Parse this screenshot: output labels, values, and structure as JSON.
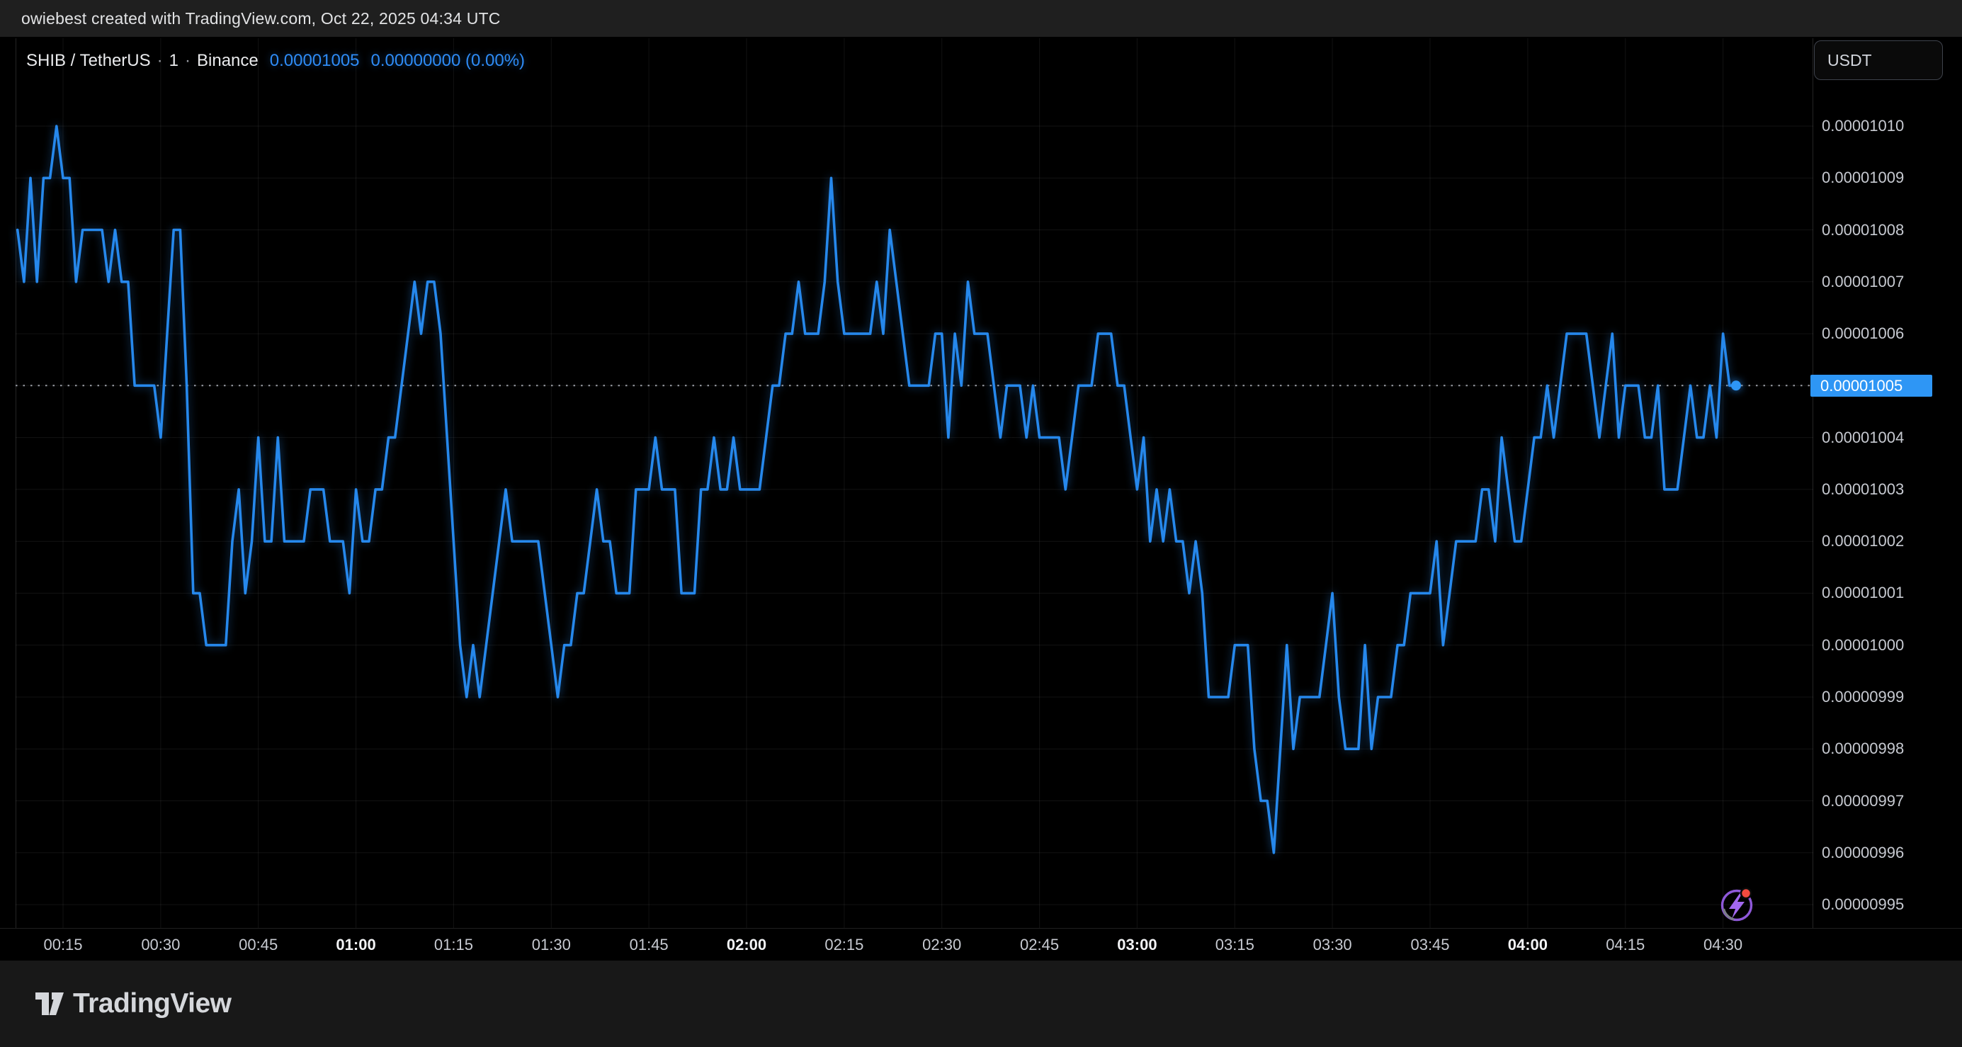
{
  "header": {
    "attribution": "owiebest created with TradingView.com, Oct 22, 2025 04:34 UTC"
  },
  "legend": {
    "symbol": "SHIB / TetherUS",
    "separator": "·",
    "interval": "1",
    "exchange": "Binance",
    "last_price": "0.00001005",
    "change": "0.00000000 (0.00%)"
  },
  "price_axis": {
    "currency": "USDT",
    "ticks": [
      "0.00001010",
      "0.00001009",
      "0.00001008",
      "0.00001007",
      "0.00001006",
      "0.00001005",
      "0.00001004",
      "0.00001003",
      "0.00001002",
      "0.00001001",
      "0.00001000",
      "0.00000999",
      "0.00000998",
      "0.00000997",
      "0.00000996",
      "0.00000995"
    ],
    "active_label": "0.00001005"
  },
  "time_axis": {
    "ticks": [
      "00:15",
      "00:30",
      "00:45",
      "01:00",
      "01:15",
      "01:30",
      "01:45",
      "02:00",
      "02:15",
      "02:30",
      "02:45",
      "03:00",
      "03:15",
      "03:30",
      "03:45",
      "04:00",
      "04:15",
      "04:30"
    ]
  },
  "footer": {
    "brand": "TradingView"
  },
  "icons": {
    "flash_icon": "circular-flash-badge-with-red-dot",
    "brand_icon": "tradingview-17-mark"
  },
  "colors": {
    "line": "#2688ec",
    "legend_value": "#2e8bf5",
    "tag_bg": "#2e96f5",
    "flash_purple": "#8e58d8",
    "flash_red": "#f34a3f",
    "header_bg": "#1f1f1f",
    "footer_bg": "#181818",
    "background": "#000000"
  },
  "chart_data": {
    "type": "line",
    "title": "SHIB / TetherUS · 1 · Binance",
    "symbol": "SHIB / TetherUS",
    "exchange": "Binance",
    "interval": "1 minute",
    "date": "Oct 22, 2025",
    "timezone": "UTC",
    "x_start_minute": 8,
    "x_step_minutes": 1,
    "x_start_label": "00:08",
    "x_end_label": "04:32",
    "unit": 1e-08,
    "note": "price = values_e8 value × 1e-8 USDT",
    "values_e8": [
      1008,
      1007,
      1009,
      1007,
      1009,
      1009,
      1010,
      1009,
      1009,
      1007,
      1008,
      1008,
      1008,
      1008,
      1007,
      1008,
      1007,
      1007,
      1005,
      1005,
      1005,
      1005,
      1004,
      1006,
      1008,
      1008,
      1005,
      1001,
      1001,
      1000,
      1000,
      1000,
      1000,
      1002,
      1003,
      1001,
      1002,
      1004,
      1002,
      1002,
      1004,
      1002,
      1002,
      1002,
      1002,
      1003,
      1003,
      1003,
      1002,
      1002,
      1002,
      1001,
      1003,
      1002,
      1002,
      1003,
      1003,
      1004,
      1004,
      1005,
      1006,
      1007,
      1006,
      1007,
      1007,
      1006,
      1004,
      1002,
      1000,
      999,
      1000,
      999,
      1000,
      1001,
      1002,
      1003,
      1002,
      1002,
      1002,
      1002,
      1002,
      1001,
      1000,
      999,
      1000,
      1000,
      1001,
      1001,
      1002,
      1003,
      1002,
      1002,
      1001,
      1001,
      1001,
      1003,
      1003,
      1003,
      1004,
      1003,
      1003,
      1003,
      1001,
      1001,
      1001,
      1003,
      1003,
      1004,
      1003,
      1003,
      1004,
      1003,
      1003,
      1003,
      1003,
      1004,
      1005,
      1005,
      1006,
      1006,
      1007,
      1006,
      1006,
      1006,
      1007,
      1009,
      1007,
      1006,
      1006,
      1006,
      1006,
      1006,
      1007,
      1006,
      1008,
      1007,
      1006,
      1005,
      1005,
      1005,
      1005,
      1006,
      1006,
      1004,
      1006,
      1005,
      1007,
      1006,
      1006,
      1006,
      1005,
      1004,
      1005,
      1005,
      1005,
      1004,
      1005,
      1004,
      1004,
      1004,
      1004,
      1003,
      1004,
      1005,
      1005,
      1005,
      1006,
      1006,
      1006,
      1005,
      1005,
      1004,
      1003,
      1004,
      1002,
      1003,
      1002,
      1003,
      1002,
      1002,
      1001,
      1002,
      1001,
      999,
      999,
      999,
      999,
      1000,
      1000,
      1000,
      998,
      997,
      997,
      996,
      998,
      1000,
      998,
      999,
      999,
      999,
      999,
      1000,
      1001,
      999,
      998,
      998,
      998,
      1000,
      998,
      999,
      999,
      999,
      1000,
      1000,
      1001,
      1001,
      1001,
      1001,
      1002,
      1000,
      1001,
      1002,
      1002,
      1002,
      1002,
      1003,
      1003,
      1002,
      1004,
      1003,
      1002,
      1002,
      1003,
      1004,
      1004,
      1005,
      1004,
      1005,
      1006,
      1006,
      1006,
      1006,
      1005,
      1004,
      1005,
      1006,
      1004,
      1005,
      1005,
      1005,
      1004,
      1004,
      1005,
      1003,
      1003,
      1003,
      1004,
      1005,
      1004,
      1004,
      1005,
      1004,
      1006,
      1005,
      1005
    ],
    "last_price": 1.005e-05,
    "change_abs": 0.0,
    "change_pct": 0.0,
    "ylim_e8": [
      995,
      1010
    ],
    "y_tick_labels": [
      "0.00001010",
      "0.00001009",
      "0.00001008",
      "0.00001007",
      "0.00001006",
      "0.00001005",
      "0.00001004",
      "0.00001003",
      "0.00001002",
      "0.00001001",
      "0.00001000",
      "0.00000999",
      "0.00000998",
      "0.00000997",
      "0.00000996",
      "0.00000995"
    ],
    "x_tick_labels": [
      "00:15",
      "00:30",
      "00:45",
      "01:00",
      "01:15",
      "01:30",
      "01:45",
      "02:00",
      "02:15",
      "02:30",
      "02:45",
      "03:00",
      "03:15",
      "03:30",
      "03:45",
      "04:00",
      "04:15",
      "04:30"
    ],
    "grid": true,
    "legend_position": "top-left",
    "line_color": "#2688ec"
  }
}
